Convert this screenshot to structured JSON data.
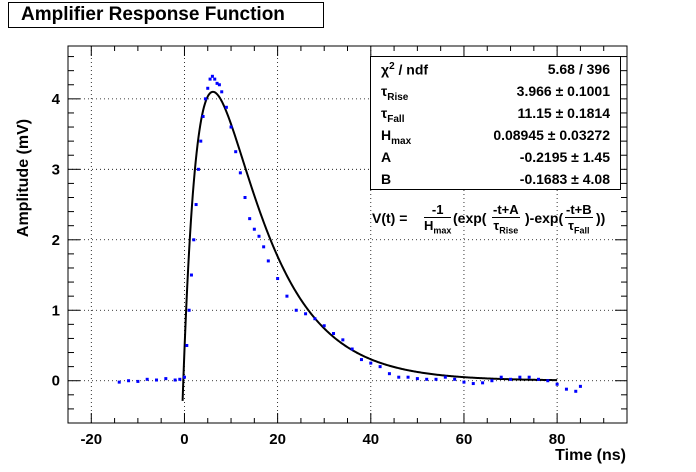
{
  "chart_data": {
    "type": "scatter",
    "title": "Amplifier Response Function",
    "xlabel": "Time (ns)",
    "ylabel": "Amplitude (mV)",
    "xlim": [
      -25,
      95
    ],
    "ylim": [
      -0.6,
      4.75
    ],
    "x_ticks": [
      -20,
      0,
      20,
      40,
      60,
      80
    ],
    "y_ticks": [
      0,
      1,
      2,
      3,
      4
    ],
    "x_tick_labels": [
      "-20",
      "0",
      "20",
      "40",
      "60",
      "80"
    ],
    "y_tick_labels": [
      "0",
      "1",
      "2",
      "3",
      "4"
    ],
    "grid": true,
    "data_series": {
      "name": "data",
      "color": "#0000ff",
      "points": [
        [
          -14,
          -0.02
        ],
        [
          -12,
          0.0
        ],
        [
          -10,
          -0.01
        ],
        [
          -8,
          0.02
        ],
        [
          -6,
          0.01
        ],
        [
          -4,
          0.03
        ],
        [
          -2,
          0.01
        ],
        [
          -1,
          0.02
        ],
        [
          0,
          0.05
        ],
        [
          0.5,
          0.5
        ],
        [
          1,
          1.0
        ],
        [
          1.5,
          1.5
        ],
        [
          2,
          2.0
        ],
        [
          2.5,
          2.5
        ],
        [
          3,
          3.0
        ],
        [
          3.5,
          3.4
        ],
        [
          4,
          3.75
        ],
        [
          4.5,
          4.0
        ],
        [
          5,
          4.15
        ],
        [
          5.5,
          4.28
        ],
        [
          6,
          4.32
        ],
        [
          6.5,
          4.28
        ],
        [
          7,
          4.22
        ],
        [
          7.5,
          4.2
        ],
        [
          8,
          4.1
        ],
        [
          9,
          3.88
        ],
        [
          10,
          3.6
        ],
        [
          11,
          3.25
        ],
        [
          12,
          2.95
        ],
        [
          13,
          2.6
        ],
        [
          14,
          2.3
        ],
        [
          15,
          2.15
        ],
        [
          16,
          2.05
        ],
        [
          17,
          1.9
        ],
        [
          18,
          1.7
        ],
        [
          20,
          1.45
        ],
        [
          22,
          1.2
        ],
        [
          24,
          1.0
        ],
        [
          26,
          0.95
        ],
        [
          28,
          0.88
        ],
        [
          30,
          0.78
        ],
        [
          32,
          0.67
        ],
        [
          34,
          0.58
        ],
        [
          36,
          0.45
        ],
        [
          38,
          0.3
        ],
        [
          40,
          0.25
        ],
        [
          42,
          0.2
        ],
        [
          44,
          0.1
        ],
        [
          46,
          0.05
        ],
        [
          48,
          0.05
        ],
        [
          50,
          0.03
        ],
        [
          52,
          0.02
        ],
        [
          54,
          0.02
        ],
        [
          56,
          0.05
        ],
        [
          58,
          0.02
        ],
        [
          60,
          -0.02
        ],
        [
          62,
          -0.04
        ],
        [
          64,
          -0.03
        ],
        [
          66,
          0.0
        ],
        [
          68,
          0.05
        ],
        [
          70,
          0.02
        ],
        [
          72,
          0.05
        ],
        [
          74,
          0.05
        ],
        [
          76,
          0.02
        ],
        [
          78,
          0.0
        ],
        [
          80,
          -0.05
        ],
        [
          82,
          -0.12
        ],
        [
          84,
          -0.15
        ],
        [
          85,
          -0.08
        ]
      ]
    },
    "fit_series": {
      "name": "fit",
      "color": "#000000",
      "x_start": -0.4,
      "x_end": 80
    },
    "fit_parameters": [
      {
        "name": "χ² / ndf",
        "value": "5.68 / 396"
      },
      {
        "name": "τ_Rise",
        "value": "3.966 ± 0.1001"
      },
      {
        "name": "τ_Fall",
        "value": "11.15 ± 0.1814"
      },
      {
        "name": "H_max",
        "value": "0.08945 ± 0.03272"
      },
      {
        "name": "A",
        "value": "-0.2195 ±  1.45"
      },
      {
        "name": "B",
        "value": "-0.1683 ±  4.08"
      }
    ]
  },
  "labels": {
    "title": "Amplifier Response Function",
    "xlabel": "Time (ns)",
    "ylabel": "Amplitude (mV)",
    "chi2_base": "χ",
    "chi2_sup": "2",
    "chi2_rest": " / ndf",
    "chi2_val": "5.68 / 396",
    "rise_base": "τ",
    "rise_sub": "Rise",
    "rise_val": "3.966 ± 0.1001",
    "fall_base": "τ",
    "fall_sub": "Fall",
    "fall_val": "11.15 ± 0.1814",
    "hmax_base": "H",
    "hmax_sub": "max",
    "hmax_val": "0.08945 ± 0.03272",
    "a_name": "A",
    "a_val": "-0.2195 ±  1.45",
    "b_name": "B",
    "b_val": "-0.1683 ±  4.08",
    "formula_lhs": "V(t) =",
    "formula_frac_num": "-1",
    "formula_frac_den_base": "H",
    "formula_frac_den_sub": "max",
    "formula_exp1": "(exp(",
    "formula_f1_num": "-t+A",
    "formula_f1_den_base": "τ",
    "formula_f1_den_sub": "Rise",
    "formula_mid": ")-exp(",
    "formula_f2_num": "-t+B",
    "formula_f2_den_base": "τ",
    "formula_f2_den_sub": "Fall",
    "formula_end": "))"
  }
}
